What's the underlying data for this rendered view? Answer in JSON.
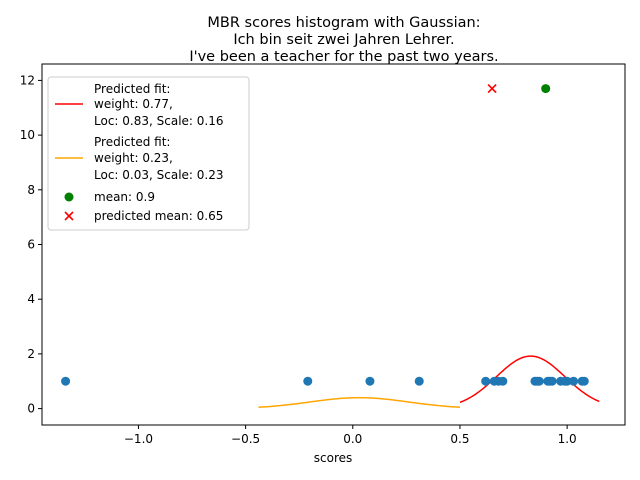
{
  "chart_data": {
    "type": "scatter",
    "title_lines": [
      "MBR scores histogram with Gaussian:",
      "Ich bin seit zwei Jahren Lehrer.",
      "I've been a teacher for the past two years."
    ],
    "xlabel": "scores",
    "ylabel": "",
    "xlim": [
      -1.45,
      1.27
    ],
    "ylim": [
      -0.6,
      12.6
    ],
    "x_ticks": [
      -1.0,
      -0.5,
      0.0,
      0.5,
      1.0
    ],
    "x_tick_labels": [
      "−1.0",
      "−0.5",
      "0.0",
      "0.5",
      "1.0"
    ],
    "y_ticks": [
      0,
      2,
      4,
      6,
      8,
      10,
      12
    ],
    "y_tick_labels": [
      "0",
      "2",
      "4",
      "6",
      "8",
      "10",
      "12"
    ],
    "grid": false,
    "legend_position": "upper-left",
    "series": [
      {
        "name_lines": [
          "Predicted fit:",
          "weight: 0.77,",
          "Loc: 0.83, Scale: 0.16"
        ],
        "kind": "line",
        "color": "#ff0000",
        "weight": 0.77,
        "loc": 0.83,
        "scale": 0.16,
        "x_range": [
          0.5,
          1.15
        ]
      },
      {
        "name_lines": [
          "Predicted fit:",
          "weight: 0.23,",
          "Loc: 0.03, Scale: 0.23"
        ],
        "kind": "line",
        "color": "#ffa500",
        "weight": 0.23,
        "loc": 0.03,
        "scale": 0.23,
        "x_range": [
          -0.44,
          0.5
        ]
      },
      {
        "name": "mean: 0.9",
        "kind": "point",
        "marker": "circle",
        "color": "#008000",
        "x": 0.9,
        "y": 11.7
      },
      {
        "name": "predicted mean: 0.65",
        "kind": "point",
        "marker": "x",
        "color": "#ff0000",
        "x": 0.65,
        "y": 11.7
      }
    ],
    "histogram_points": {
      "color": "#1f77b4",
      "x": [
        -1.34,
        -0.21,
        0.08,
        0.31,
        0.62,
        0.66,
        0.68,
        0.7,
        0.85,
        0.86,
        0.87,
        0.91,
        0.92,
        0.93,
        0.97,
        0.99,
        1.0,
        1.03,
        1.07,
        1.08
      ],
      "y": [
        1,
        1,
        1,
        1,
        1,
        1,
        1,
        1,
        1,
        1,
        1,
        1,
        1,
        1,
        1,
        1,
        1,
        1,
        1,
        1
      ]
    }
  }
}
